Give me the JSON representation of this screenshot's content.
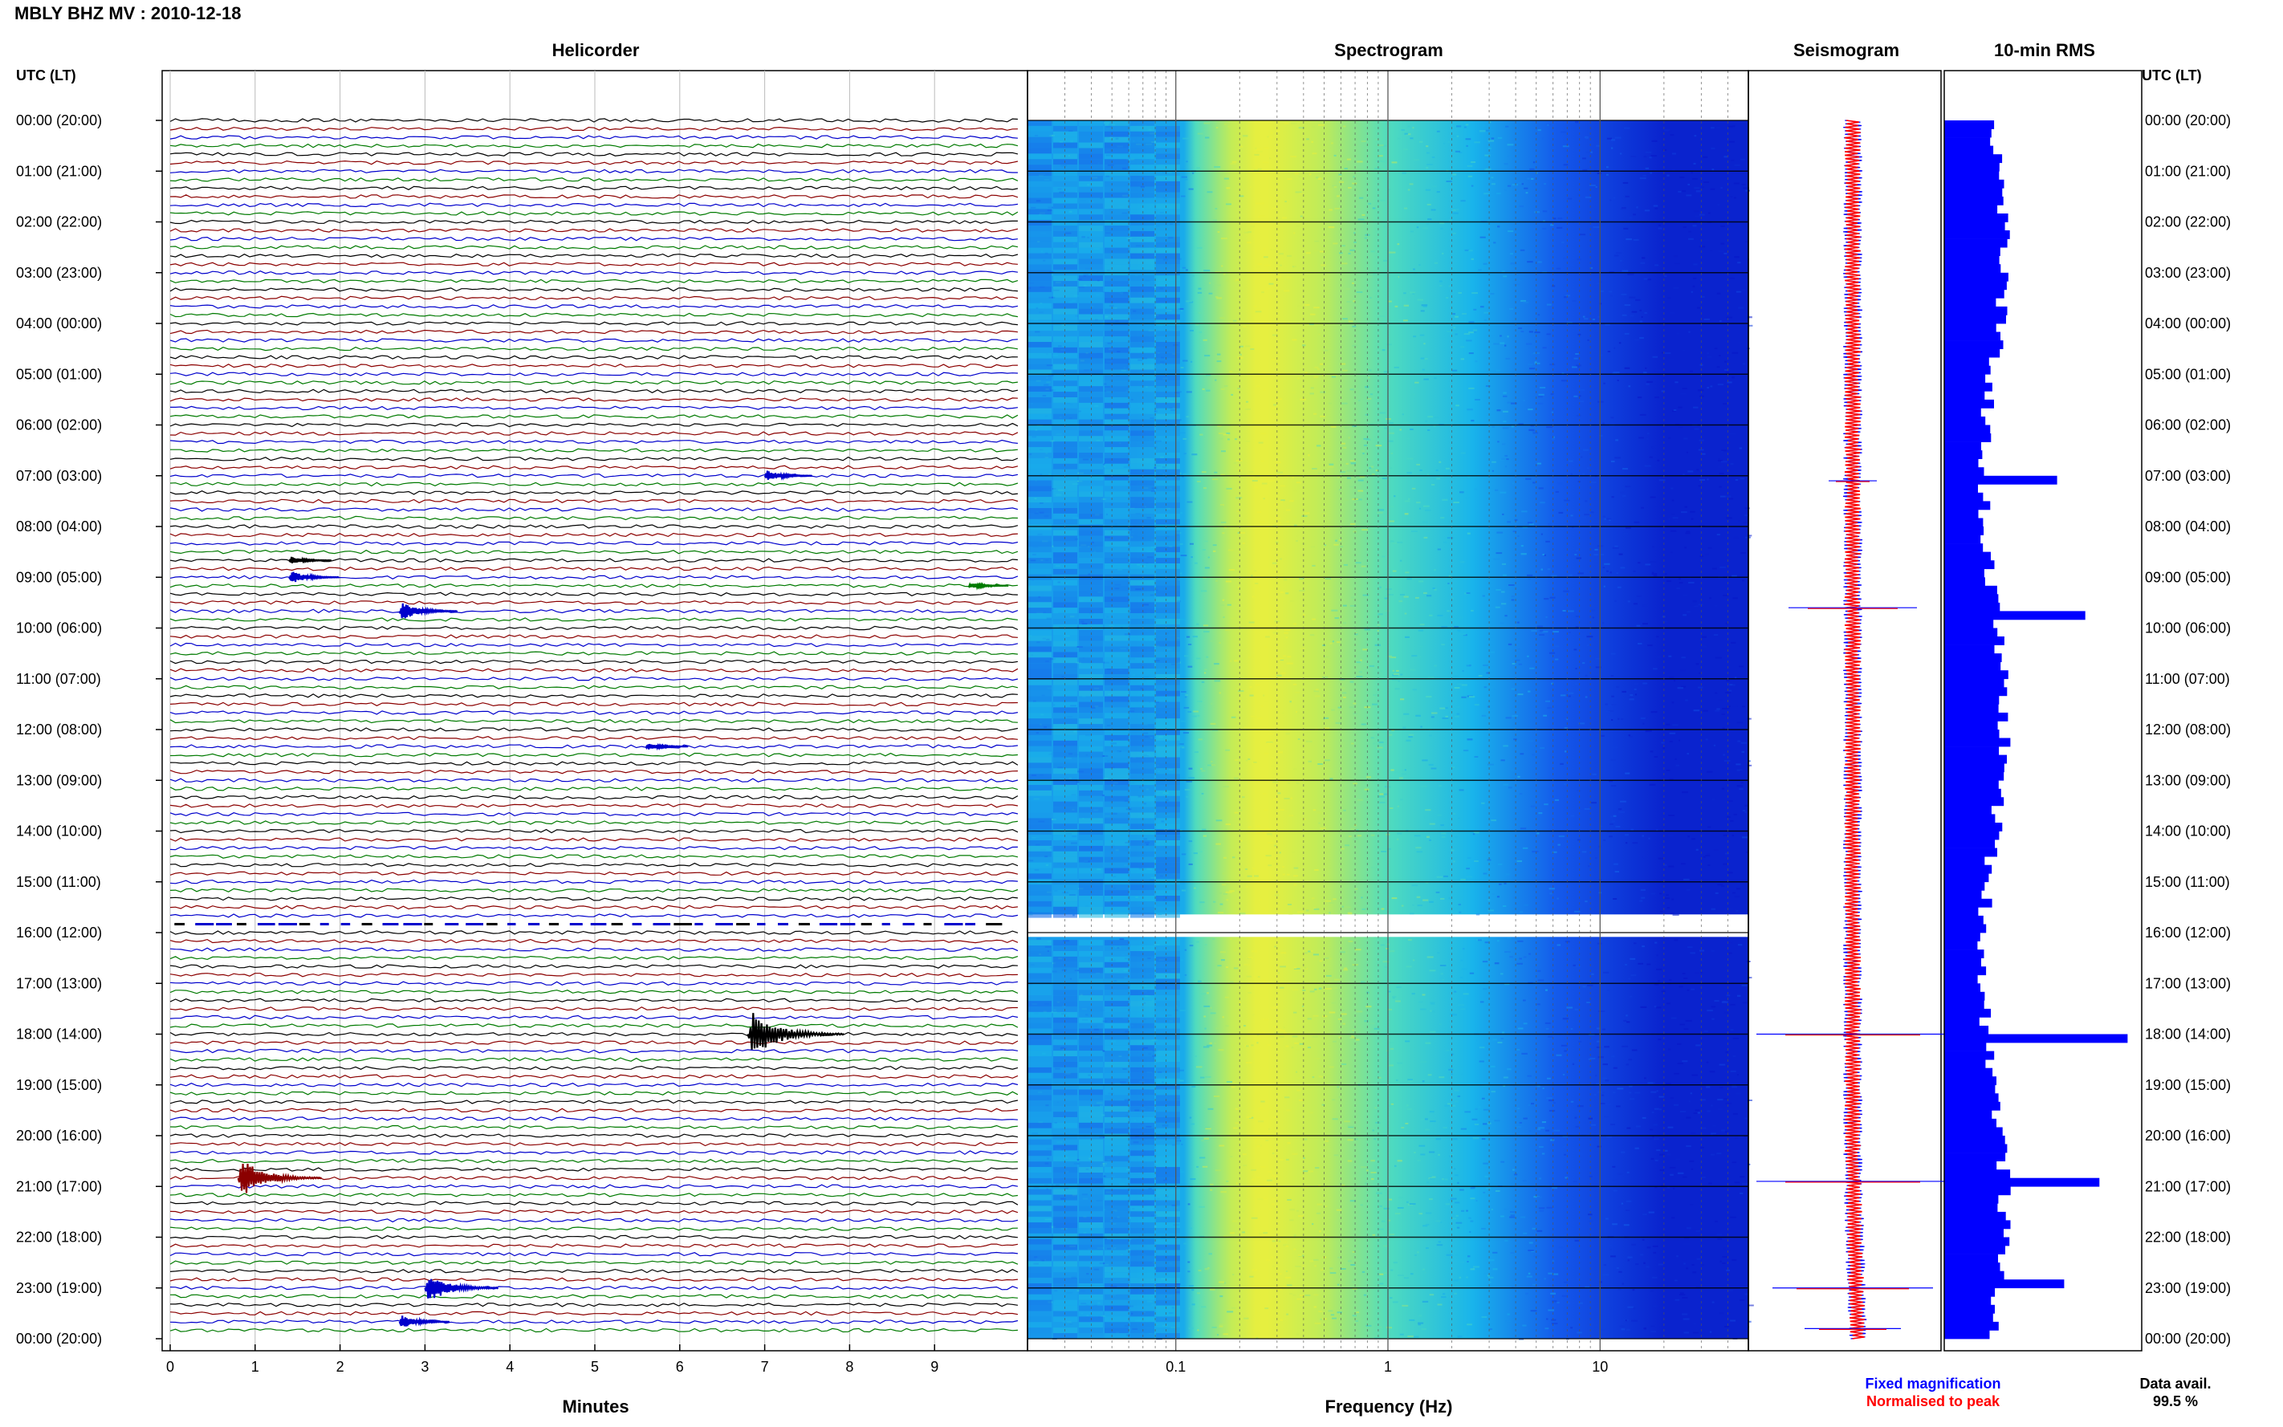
{
  "header": {
    "title": "MBLY BHZ MV : 2010-12-18"
  },
  "panels": {
    "helicorder": "Helicorder",
    "spectrogram": "Spectrogram",
    "seismogram": "Seismogram",
    "rms": "10-min RMS"
  },
  "utc_label_left": "UTC (LT)",
  "utc_label_right": "UTC (LT)",
  "footer": {
    "minutes_label": "Minutes",
    "frequency_label": "Frequency (Hz)",
    "fixed_magnification": "Fixed magnification",
    "normalised_to_peak": "Normalised to peak",
    "data_avail_label": "Data avail.",
    "data_avail_value": "99.5 %"
  },
  "colors": {
    "trace": [
      "#000000",
      "#8b0000",
      "#0000cc",
      "#007a00"
    ],
    "rms_bar": "#0000ff",
    "legend_blue": "#0000ff",
    "legend_red": "#ff0000"
  },
  "chart_data": [
    {
      "type": "line",
      "title": "Helicorder",
      "xlabel": "Minutes",
      "xlim": [
        0,
        10
      ],
      "x_ticks": [
        "0",
        "1",
        "2",
        "3",
        "4",
        "5",
        "6",
        "7",
        "8",
        "9"
      ],
      "y_tick_labels_left": [
        "00:00 (20:00)",
        "01:00 (21:00)",
        "02:00 (22:00)",
        "03:00 (23:00)",
        "04:00 (00:00)",
        "05:00 (01:00)",
        "06:00 (02:00)",
        "07:00 (03:00)",
        "08:00 (04:00)",
        "09:00 (05:00)",
        "10:00 (06:00)",
        "11:00 (07:00)",
        "12:00 (08:00)",
        "13:00 (09:00)",
        "14:00 (10:00)",
        "15:00 (11:00)",
        "16:00 (12:00)",
        "17:00 (13:00)",
        "18:00 (14:00)",
        "19:00 (15:00)",
        "20:00 (16:00)",
        "21:00 (17:00)",
        "22:00 (18:00)",
        "23:00 (19:00)",
        "00:00 (20:00)"
      ],
      "traces": 144,
      "trace_minutes": 10,
      "data_gap_hour": 15.8,
      "events": [
        {
          "hour": 7.0,
          "minute": 7.0,
          "amp": 1.2
        },
        {
          "hour": 8.6,
          "minute": 1.4,
          "amp": 0.8
        },
        {
          "hour": 9.2,
          "minute": 9.4,
          "amp": 0.6
        },
        {
          "hour": 9.0,
          "minute": 1.4,
          "amp": 1.4
        },
        {
          "hour": 9.6,
          "minute": 2.7,
          "amp": 2.0
        },
        {
          "hour": 12.4,
          "minute": 5.6,
          "amp": 0.8
        },
        {
          "hour": 18.0,
          "minute": 6.8,
          "amp": 5.0
        },
        {
          "hour": 20.8,
          "minute": 0.8,
          "amp": 4.0
        },
        {
          "hour": 23.0,
          "minute": 3.0,
          "amp": 3.2
        },
        {
          "hour": 23.6,
          "minute": 2.7,
          "amp": 1.4
        }
      ]
    },
    {
      "type": "heatmap",
      "title": "Spectrogram",
      "xlabel": "Frequency (Hz)",
      "x_scale": "log",
      "xlim": [
        0.02,
        50
      ],
      "x_ticks": [
        "0.1",
        "1",
        "10"
      ],
      "peak_frequency_hz": 0.25,
      "data_gap_hour": 15.8
    },
    {
      "type": "line",
      "title": "Seismogram",
      "legend": [
        "Fixed magnification",
        "Normalised to peak"
      ],
      "spikes_hour": [
        7.1,
        9.6,
        18.0,
        20.9,
        23.0,
        23.8
      ]
    },
    {
      "type": "bar",
      "title": "10-min RMS",
      "orientation": "horizontal",
      "bins": 144,
      "data_avail_percent": 99.5,
      "peaks": [
        {
          "hour": 7.0,
          "value": 1.6
        },
        {
          "hour": 9.7,
          "value": 2.0
        },
        {
          "hour": 18.0,
          "value": 2.6
        },
        {
          "hour": 20.8,
          "value": 2.2
        },
        {
          "hour": 22.9,
          "value": 1.7
        }
      ]
    }
  ]
}
